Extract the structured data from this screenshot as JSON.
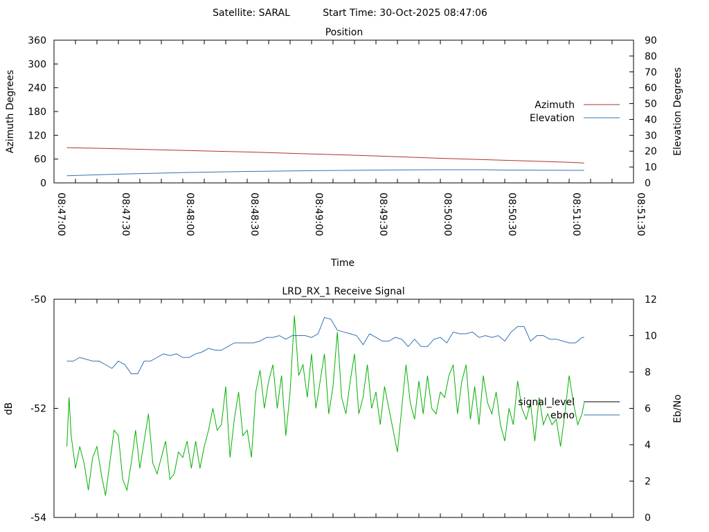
{
  "header": {
    "satellite": "Satellite: SARAL",
    "start_time": "Start Time: 30-Oct-2025 08:47:06"
  },
  "chart_data": [
    {
      "type": "line",
      "title": "Position",
      "xlabel": "Time",
      "ylabel": "Azimuth Degrees",
      "y2label": "Elevation Degrees",
      "x_ticks": [
        "08:47:00",
        "08:47:30",
        "08:48:00",
        "08:48:30",
        "08:49:00",
        "08:49:30",
        "08:50:00",
        "08:50:30",
        "08:51:00",
        "08:51:30"
      ],
      "xlim": [
        0,
        270
      ],
      "ylim": [
        0,
        360
      ],
      "y_ticks": [
        "0",
        "60",
        "120",
        "180",
        "240",
        "300",
        "360"
      ],
      "y2lim": [
        0,
        90
      ],
      "y2_ticks": [
        "0",
        "10",
        "20",
        "30",
        "40",
        "50",
        "60",
        "70",
        "80",
        "90"
      ],
      "legend_position": "right",
      "x_unit": "seconds after 08:47:00",
      "series": [
        {
          "name": "Azimuth",
          "axis": "left",
          "color": "#b03030",
          "x": [
            6,
            30,
            60,
            90,
            120,
            150,
            180,
            210,
            240,
            247
          ],
          "y": [
            89,
            86,
            82,
            78,
            73,
            68,
            62,
            57,
            52,
            50
          ]
        },
        {
          "name": "Elevation",
          "axis": "right",
          "color": "#3070b0",
          "x": [
            6,
            30,
            60,
            90,
            120,
            150,
            180,
            200,
            210,
            240,
            247
          ],
          "y": [
            4.5,
            5.5,
            6.5,
            7.2,
            7.7,
            8.1,
            8.3,
            8.3,
            8.1,
            7.9,
            7.9
          ]
        }
      ]
    },
    {
      "type": "line",
      "title": "LRD_RX_1 Receive Signal",
      "xlabel": "",
      "ylabel": "dB",
      "y2label": "Eb/No",
      "xlim": [
        0,
        270
      ],
      "ylim": [
        -54,
        -50
      ],
      "y_ticks": [
        "-54",
        "-52",
        "-50"
      ],
      "y2lim": [
        0,
        12
      ],
      "y2_ticks": [
        "0",
        "2",
        "4",
        "6",
        "8",
        "10",
        "12"
      ],
      "legend_position": "right",
      "series": [
        {
          "name": "signal_level",
          "axis": "left",
          "legend_color": "#000000",
          "color": "#00b000",
          "x": [
            6,
            7,
            8,
            10,
            12,
            14,
            16,
            18,
            20,
            22,
            24,
            26,
            28,
            30,
            32,
            34,
            36,
            38,
            40,
            42,
            44,
            46,
            48,
            50,
            52,
            54,
            56,
            58,
            60,
            62,
            64,
            66,
            68,
            70,
            72,
            74,
            76,
            78,
            80,
            82,
            84,
            86,
            88,
            90,
            92,
            94,
            96,
            98,
            100,
            102,
            104,
            106,
            108,
            110,
            112,
            114,
            116,
            118,
            120,
            122,
            124,
            126,
            128,
            130,
            132,
            134,
            136,
            138,
            140,
            142,
            144,
            146,
            148,
            150,
            152,
            154,
            156,
            158,
            160,
            162,
            164,
            166,
            168,
            170,
            172,
            174,
            176,
            178,
            180,
            182,
            184,
            186,
            188,
            190,
            192,
            194,
            196,
            198,
            200,
            202,
            204,
            206,
            208,
            210,
            212,
            214,
            216,
            218,
            220,
            222,
            224,
            226,
            228,
            230,
            232,
            234,
            236,
            238,
            240,
            242,
            244,
            246,
            247
          ],
          "y": [
            -52.7,
            -51.8,
            -52.5,
            -53.1,
            -52.7,
            -53.0,
            -53.5,
            -52.9,
            -52.7,
            -53.2,
            -53.6,
            -53.0,
            -52.4,
            -52.5,
            -53.3,
            -53.5,
            -53.0,
            -52.4,
            -53.1,
            -52.6,
            -52.1,
            -53.0,
            -53.2,
            -52.9,
            -52.6,
            -53.3,
            -53.2,
            -52.8,
            -52.9,
            -52.6,
            -53.1,
            -52.6,
            -53.1,
            -52.7,
            -52.4,
            -52.0,
            -52.4,
            -52.3,
            -51.6,
            -52.9,
            -52.2,
            -51.7,
            -52.5,
            -52.4,
            -52.9,
            -51.7,
            -51.3,
            -52.0,
            -51.5,
            -51.2,
            -52.0,
            -51.4,
            -52.5,
            -51.7,
            -50.3,
            -51.4,
            -51.2,
            -51.8,
            -51.0,
            -52.0,
            -51.5,
            -51.0,
            -52.1,
            -51.6,
            -50.6,
            -51.8,
            -52.1,
            -51.5,
            -51.0,
            -52.1,
            -51.8,
            -51.2,
            -52.0,
            -51.7,
            -52.3,
            -51.6,
            -52.0,
            -52.4,
            -52.8,
            -52.0,
            -51.2,
            -51.9,
            -52.2,
            -51.5,
            -52.1,
            -51.4,
            -52.0,
            -52.1,
            -51.7,
            -51.8,
            -51.4,
            -51.2,
            -52.1,
            -51.5,
            -51.2,
            -52.2,
            -51.6,
            -52.3,
            -51.4,
            -51.9,
            -52.1,
            -51.7,
            -52.3,
            -52.6,
            -52.0,
            -52.3,
            -51.5,
            -52.0,
            -52.2,
            -51.9,
            -52.6,
            -51.8,
            -52.3,
            -52.1,
            -52.3,
            -52.2,
            -52.7,
            -52.1,
            -51.4,
            -51.9,
            -52.3,
            -52.1,
            -51.9
          ]
        },
        {
          "name": "ebno",
          "axis": "right",
          "color": "#3070b0",
          "x": [
            6,
            9,
            12,
            15,
            18,
            21,
            24,
            27,
            30,
            33,
            36,
            39,
            42,
            45,
            48,
            51,
            54,
            57,
            60,
            63,
            66,
            69,
            72,
            75,
            78,
            81,
            84,
            87,
            90,
            93,
            96,
            99,
            102,
            105,
            108,
            111,
            114,
            117,
            120,
            123,
            126,
            129,
            132,
            135,
            138,
            141,
            144,
            147,
            150,
            153,
            156,
            159,
            162,
            165,
            168,
            171,
            174,
            177,
            180,
            183,
            186,
            189,
            192,
            195,
            198,
            201,
            204,
            207,
            210,
            213,
            216,
            219,
            222,
            225,
            228,
            231,
            234,
            237,
            240,
            243,
            246,
            247
          ],
          "y": [
            8.6,
            8.6,
            8.8,
            8.7,
            8.6,
            8.6,
            8.4,
            8.2,
            8.6,
            8.4,
            7.9,
            7.9,
            8.6,
            8.6,
            8.8,
            9.0,
            8.9,
            9.0,
            8.8,
            8.8,
            9.0,
            9.1,
            9.3,
            9.2,
            9.2,
            9.4,
            9.6,
            9.6,
            9.6,
            9.6,
            9.7,
            9.9,
            9.9,
            10.0,
            9.8,
            10.0,
            10.0,
            10.0,
            9.9,
            10.1,
            11.0,
            10.9,
            10.3,
            10.2,
            10.1,
            10.0,
            9.5,
            10.1,
            9.9,
            9.7,
            9.7,
            9.9,
            9.8,
            9.4,
            9.8,
            9.4,
            9.4,
            9.8,
            9.9,
            9.6,
            10.2,
            10.1,
            10.1,
            10.2,
            9.9,
            10.0,
            9.9,
            10.0,
            9.7,
            10.2,
            10.5,
            10.5,
            9.7,
            10.0,
            10.0,
            9.8,
            9.8,
            9.7,
            9.6,
            9.6,
            9.9,
            9.9
          ]
        }
      ]
    }
  ]
}
